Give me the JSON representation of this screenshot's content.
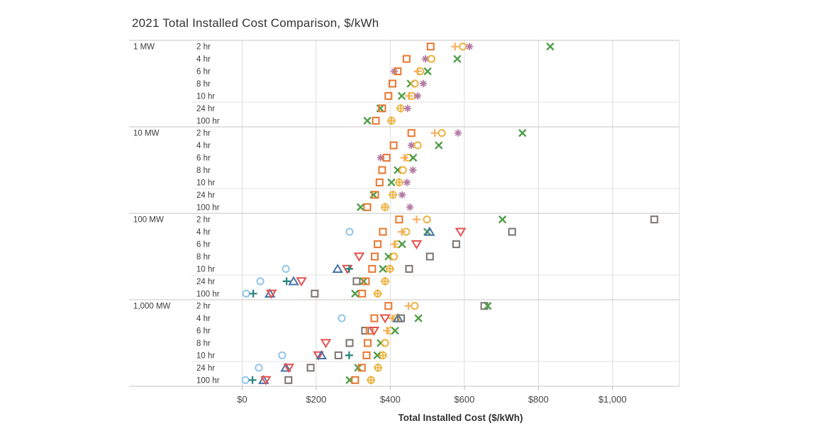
{
  "title": "2021 Total Installed Cost Comparison, $/kWh",
  "chart_data": {
    "type": "scatter",
    "title": "2021 Total Installed Cost Comparison, $/kWh",
    "xlabel": "Total Installed Cost ($/kWh)",
    "ylabel": "",
    "xlim": [
      0,
      1180
    ],
    "grid": "vertical",
    "legend": "none",
    "x_ticks": [
      {
        "value": 0,
        "label": "$0"
      },
      {
        "value": 200,
        "label": "$200"
      },
      {
        "value": 400,
        "label": "$400"
      },
      {
        "value": 600,
        "label": "$600"
      },
      {
        "value": 800,
        "label": "$800"
      },
      {
        "value": 1000,
        "label": "$1,000"
      }
    ],
    "markers": {
      "os": {
        "name": "orange-square",
        "shape": "square",
        "color": "#E8772F"
      },
      "op": {
        "name": "orange-plus",
        "shape": "plus",
        "color": "#F8AF63"
      },
      "yc": {
        "name": "yellow-circle",
        "shape": "circle",
        "color": "#EDB23E"
      },
      "ycp": {
        "name": "yellow-circle-plus",
        "shape": "circle-plus",
        "color": "#EDB23E"
      },
      "pa": {
        "name": "purple-asterisk",
        "shape": "asterisk",
        "color": "#B279A2"
      },
      "gx": {
        "name": "green-x",
        "shape": "x",
        "color": "#4F9E4A"
      },
      "gs": {
        "name": "gray-square",
        "shape": "square",
        "color": "#7A7470"
      },
      "bt": {
        "name": "blue-triangle-up",
        "shape": "triangle-up",
        "color": "#4573A7"
      },
      "rt": {
        "name": "red-triangle-down",
        "shape": "triangle-down",
        "color": "#E2514F"
      },
      "lb": {
        "name": "lightblue-circle",
        "shape": "circle",
        "color": "#92C5E8"
      },
      "tp": {
        "name": "teal-plus",
        "shape": "plus",
        "color": "#26837B"
      }
    },
    "durations": [
      "2 hr",
      "4 hr",
      "6 hr",
      "8 hr",
      "10 hr",
      "24 hr",
      "100 hr"
    ],
    "groups": [
      {
        "label": "1 MW",
        "rows": [
          {
            "duration": "2 hr",
            "points": [
              [
                "os",
                509
              ],
              [
                "op",
                575
              ],
              [
                "yc",
                596
              ],
              [
                "pa",
                614
              ],
              [
                "gx",
                832
              ]
            ]
          },
          {
            "duration": "4 hr",
            "points": [
              [
                "os",
                444
              ],
              [
                "pa",
                495
              ],
              [
                "yc",
                511
              ],
              [
                "gx",
                581
              ]
            ]
          },
          {
            "duration": "6 hr",
            "points": [
              [
                "pa",
                411
              ],
              [
                "os",
                420
              ],
              [
                "op",
                474
              ],
              [
                "yc",
                481
              ],
              [
                "gx",
                501
              ]
            ]
          },
          {
            "duration": "8 hr",
            "points": [
              [
                "os",
                406
              ],
              [
                "gx",
                455
              ],
              [
                "yc",
                466
              ],
              [
                "pa",
                489
              ]
            ]
          },
          {
            "duration": "10 hr",
            "points": [
              [
                "os",
                395
              ],
              [
                "gx",
                431
              ],
              [
                "op",
                450
              ],
              [
                "yc",
                458
              ],
              [
                "pa",
                474
              ]
            ]
          },
          {
            "duration": "24 hr",
            "points": [
              [
                "gx",
                373
              ],
              [
                "os",
                378
              ],
              [
                "ycp",
                428
              ],
              [
                "pa",
                447
              ]
            ]
          },
          {
            "duration": "100 hr",
            "points": [
              [
                "gx",
                338
              ],
              [
                "os",
                361
              ],
              [
                "ycp",
                403
              ]
            ]
          }
        ]
      },
      {
        "label": "10 MW",
        "rows": [
          {
            "duration": "2 hr",
            "points": [
              [
                "os",
                457
              ],
              [
                "op",
                520
              ],
              [
                "yc",
                539
              ],
              [
                "pa",
                583
              ],
              [
                "gx",
                757
              ]
            ]
          },
          {
            "duration": "4 hr",
            "points": [
              [
                "os",
                409
              ],
              [
                "pa",
                457
              ],
              [
                "yc",
                474
              ],
              [
                "gx",
                531
              ]
            ]
          },
          {
            "duration": "6 hr",
            "points": [
              [
                "pa",
                374
              ],
              [
                "os",
                390
              ],
              [
                "op",
                438
              ],
              [
                "yc",
                449
              ],
              [
                "gx",
                462
              ]
            ]
          },
          {
            "duration": "8 hr",
            "points": [
              [
                "os",
                378
              ],
              [
                "gx",
                420
              ],
              [
                "yc",
                434
              ],
              [
                "pa",
                461
              ]
            ]
          },
          {
            "duration": "10 hr",
            "points": [
              [
                "os",
                371
              ],
              [
                "gx",
                403
              ],
              [
                "ycp",
                424
              ],
              [
                "pa",
                445
              ]
            ]
          },
          {
            "duration": "24 hr",
            "points": [
              [
                "gx",
                355
              ],
              [
                "os",
                359
              ],
              [
                "ycp",
                407
              ],
              [
                "pa",
                432
              ]
            ]
          },
          {
            "duration": "100 hr",
            "points": [
              [
                "gx",
                320
              ],
              [
                "os",
                338
              ],
              [
                "ycp",
                386
              ],
              [
                "pa",
                453
              ]
            ]
          }
        ]
      },
      {
        "label": "100 MW",
        "rows": [
          {
            "duration": "2 hr",
            "points": [
              [
                "os",
                424
              ],
              [
                "op",
                471
              ],
              [
                "yc",
                499
              ],
              [
                "gx",
                703
              ],
              [
                "gs",
                1113
              ]
            ]
          },
          {
            "duration": "4 hr",
            "points": [
              [
                "lb",
                290
              ],
              [
                "os",
                380
              ],
              [
                "op",
                431
              ],
              [
                "yc",
                443
              ],
              [
                "gx",
                500
              ],
              [
                "bt",
                506
              ],
              [
                "rt",
                590
              ],
              [
                "gs",
                729
              ]
            ]
          },
          {
            "duration": "6 hr",
            "points": [
              [
                "os",
                366
              ],
              [
                "op",
                411
              ],
              [
                "yc",
                420
              ],
              [
                "gx",
                432
              ],
              [
                "rt",
                471
              ],
              [
                "gs",
                578
              ]
            ]
          },
          {
            "duration": "8 hr",
            "points": [
              [
                "rt",
                316
              ],
              [
                "os",
                358
              ],
              [
                "gx",
                395
              ],
              [
                "yc",
                410
              ],
              [
                "gs",
                507
              ]
            ]
          },
          {
            "duration": "10 hr",
            "points": [
              [
                "lb",
                118
              ],
              [
                "bt",
                258
              ],
              [
                "rt",
                284
              ],
              [
                "tp",
                289
              ],
              [
                "os",
                351
              ],
              [
                "gx",
                380
              ],
              [
                "ycp",
                399
              ],
              [
                "gs",
                451
              ]
            ]
          },
          {
            "duration": "24 hr",
            "points": [
              [
                "lb",
                49
              ],
              [
                "tp",
                120
              ],
              [
                "bt",
                139
              ],
              [
                "rt",
                160
              ],
              [
                "gs",
                309
              ],
              [
                "gx",
                328
              ],
              [
                "os",
                334
              ],
              [
                "ycp",
                386
              ]
            ]
          },
          {
            "duration": "100 hr",
            "points": [
              [
                "lb",
                11
              ],
              [
                "tp",
                30
              ],
              [
                "bt",
                75
              ],
              [
                "rt",
                79
              ],
              [
                "gs",
                196
              ],
              [
                "gx",
                305
              ],
              [
                "os",
                324
              ],
              [
                "ycp",
                366
              ]
            ]
          }
        ]
      },
      {
        "label": "1,000 MW",
        "rows": [
          {
            "duration": "2 hr",
            "points": [
              [
                "os",
                395
              ],
              [
                "op",
                449
              ],
              [
                "yc",
                466
              ],
              [
                "gs",
                654
              ],
              [
                "gx",
                663
              ]
            ]
          },
          {
            "duration": "4 hr",
            "points": [
              [
                "lb",
                269
              ],
              [
                "os",
                357
              ],
              [
                "rt",
                386
              ],
              [
                "op",
                405
              ],
              [
                "yc",
                416
              ],
              [
                "bt",
                421
              ],
              [
                "gs",
                429
              ],
              [
                "gx",
                476
              ]
            ]
          },
          {
            "duration": "6 hr",
            "points": [
              [
                "gs",
                332
              ],
              [
                "os",
                344
              ],
              [
                "rt",
                356
              ],
              [
                "op",
                391
              ],
              [
                "yc",
                401
              ],
              [
                "gx",
                413
              ]
            ]
          },
          {
            "duration": "8 hr",
            "points": [
              [
                "rt",
                226
              ],
              [
                "gs",
                290
              ],
              [
                "os",
                339
              ],
              [
                "gx",
                374
              ],
              [
                "yc",
                386
              ]
            ]
          },
          {
            "duration": "10 hr",
            "points": [
              [
                "lb",
                108
              ],
              [
                "rt",
                206
              ],
              [
                "bt",
                214
              ],
              [
                "gs",
                260
              ],
              [
                "tp",
                289
              ],
              [
                "os",
                336
              ],
              [
                "gx",
                365
              ],
              [
                "ycp",
                380
              ]
            ]
          },
          {
            "duration": "24 hr",
            "points": [
              [
                "lb",
                45
              ],
              [
                "bt",
                118
              ],
              [
                "rt",
                126
              ],
              [
                "gs",
                185
              ],
              [
                "gx",
                313
              ],
              [
                "os",
                323
              ],
              [
                "ycp",
                367
              ]
            ]
          },
          {
            "duration": "100 hr",
            "points": [
              [
                "lb",
                9
              ],
              [
                "tp",
                28
              ],
              [
                "bt",
                58
              ],
              [
                "rt",
                64
              ],
              [
                "gs",
                125
              ],
              [
                "gx",
                290
              ],
              [
                "os",
                305
              ],
              [
                "ycp",
                348
              ]
            ]
          }
        ]
      }
    ],
    "colors": {
      "grid_line": "#dcdcdc",
      "group_line": "#c9c5c2",
      "sub_divider": "#e4e2e0",
      "tick_mark": "#b7b3b0",
      "label_text": "#3c3c3c",
      "axis_text": "#444444",
      "title_text": "#333333"
    }
  }
}
